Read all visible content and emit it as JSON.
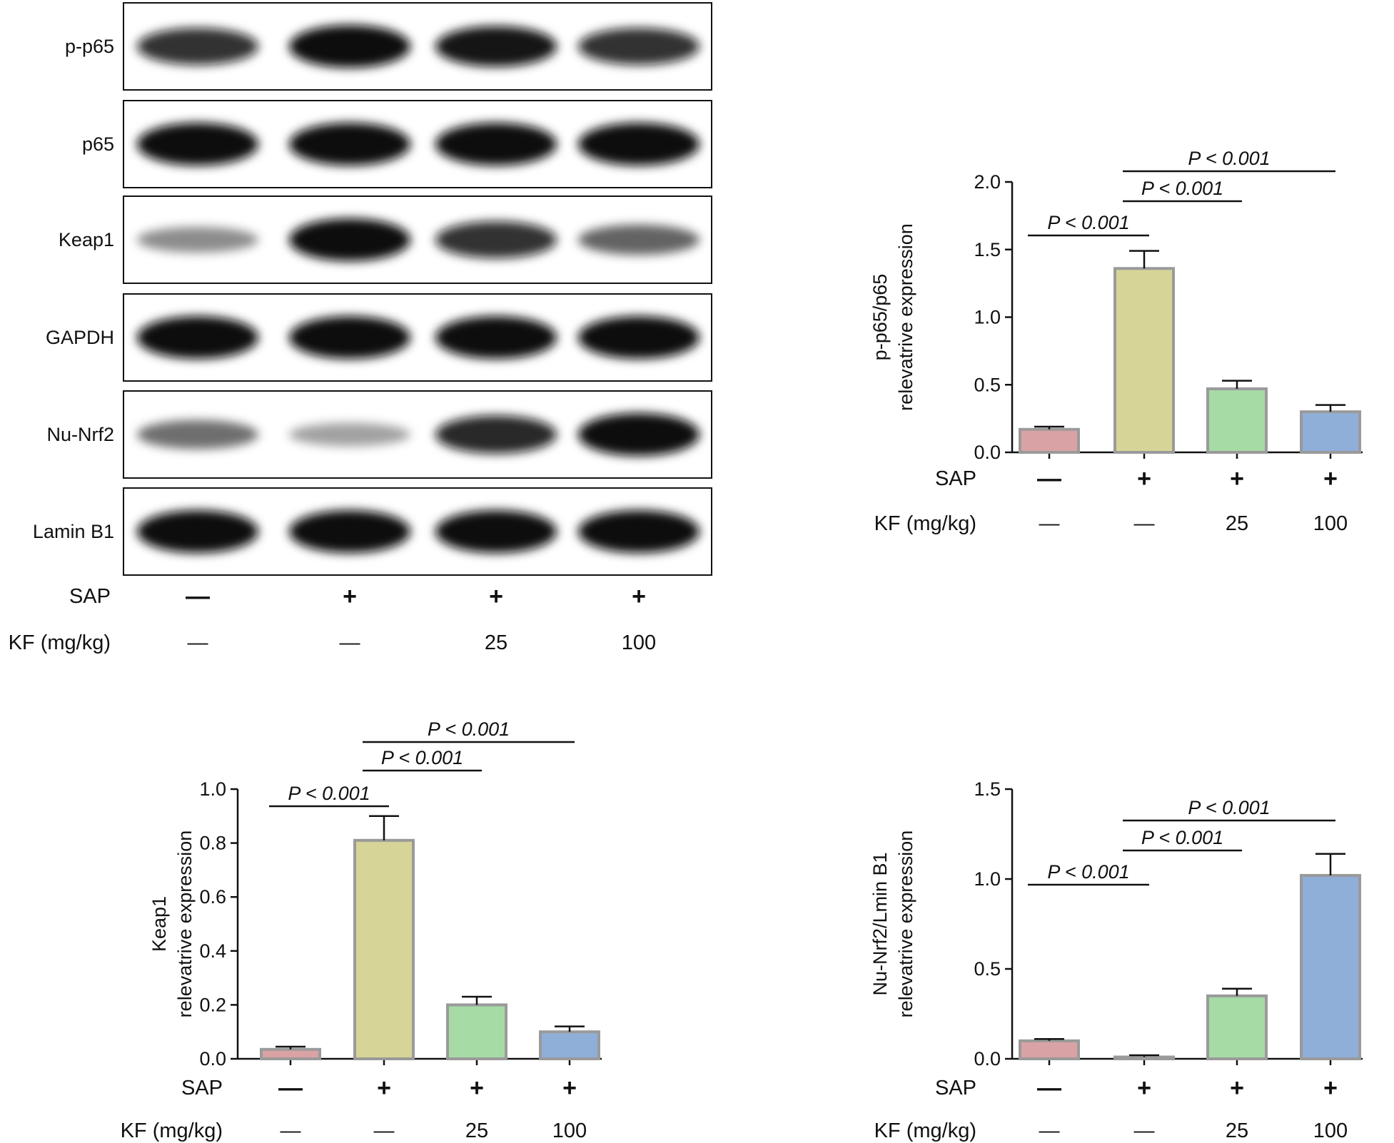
{
  "blot": {
    "rows": [
      {
        "label": "p-p65",
        "intensity": [
          0.75,
          1.0,
          0.9,
          0.75
        ]
      },
      {
        "label": "p65",
        "intensity": [
          1.0,
          1.0,
          1.0,
          1.0
        ]
      },
      {
        "label": "Keap1",
        "intensity": [
          0.25,
          1.0,
          0.75,
          0.45
        ]
      },
      {
        "label": "GAPDH",
        "intensity": [
          1.0,
          1.0,
          1.0,
          1.0
        ]
      },
      {
        "label": "Nu-Nrf2",
        "intensity": [
          0.4,
          0.15,
          0.8,
          1.0
        ]
      },
      {
        "label": "Lamin B1",
        "intensity": [
          1.0,
          1.0,
          1.0,
          1.0
        ]
      }
    ],
    "conditions": {
      "sap_label": "SAP",
      "kf_label": "KF (mg/kg)",
      "sap": [
        "—",
        "+",
        "+",
        "+"
      ],
      "kf": [
        "—",
        "—",
        "25",
        "100"
      ]
    }
  },
  "chart_data": [
    {
      "type": "bar",
      "ylabel": [
        "p-p65/p65",
        "relevatrive expression"
      ],
      "ylim": [
        0,
        2.0
      ],
      "yticks": [
        "0.0",
        "0.5",
        "1.0",
        "1.5",
        "2.0"
      ],
      "values": [
        0.17,
        1.36,
        0.47,
        0.3
      ],
      "errors": [
        0.02,
        0.13,
        0.06,
        0.05
      ],
      "colors": [
        "#d9a3a5",
        "#d6d597",
        "#a6dba6",
        "#8faed8"
      ],
      "sap_label": "SAP",
      "kf_label": "KF (mg/kg)",
      "sap": [
        "—",
        "+",
        "+",
        "+"
      ],
      "kf": [
        "—",
        "—",
        "25",
        "100"
      ],
      "annotations": [
        {
          "text": "P < 0.001",
          "from": 0,
          "to": 1,
          "level": 1
        },
        {
          "text": "P < 0.001",
          "from": 1,
          "to": 2,
          "level": 2
        },
        {
          "text": "P < 0.001",
          "from": 1,
          "to": 3,
          "level": 3
        }
      ]
    },
    {
      "type": "bar",
      "ylabel": [
        "Keap1",
        "relevatrive expression"
      ],
      "ylim": [
        0,
        1.0
      ],
      "yticks": [
        "0.0",
        "0.2",
        "0.4",
        "0.6",
        "0.8",
        "1.0"
      ],
      "values": [
        0.035,
        0.81,
        0.2,
        0.1
      ],
      "errors": [
        0.01,
        0.09,
        0.03,
        0.02
      ],
      "colors": [
        "#d9a3a5",
        "#d6d597",
        "#a6dba6",
        "#8faed8"
      ],
      "sap_label": "SAP",
      "kf_label": "KF (mg/kg)",
      "sap": [
        "—",
        "+",
        "+",
        "+"
      ],
      "kf": [
        "—",
        "—",
        "25",
        "100"
      ],
      "annotations": [
        {
          "text": "P < 0.001",
          "from": 0,
          "to": 1,
          "level": 1
        },
        {
          "text": "P < 0.001",
          "from": 1,
          "to": 2,
          "level": 2
        },
        {
          "text": "P < 0.001",
          "from": 1,
          "to": 3,
          "level": 3
        }
      ]
    },
    {
      "type": "bar",
      "ylabel": [
        "Nu-Nrf2/Lmin B1",
        "relevatrive expression"
      ],
      "ylim": [
        0,
        1.5
      ],
      "yticks": [
        "0.0",
        "0.5",
        "1.0",
        "1.5"
      ],
      "values": [
        0.1,
        0.01,
        0.35,
        1.02
      ],
      "errors": [
        0.01,
        0.01,
        0.04,
        0.12
      ],
      "colors": [
        "#d9a3a5",
        "#d6d597",
        "#a6dba6",
        "#8faed8"
      ],
      "sap_label": "SAP",
      "kf_label": "KF (mg/kg)",
      "sap": [
        "—",
        "+",
        "+",
        "+"
      ],
      "kf": [
        "—",
        "—",
        "25",
        "100"
      ],
      "annotations": [
        {
          "text": "P < 0.001",
          "from": 0,
          "to": 1,
          "level": 1
        },
        {
          "text": "P < 0.001",
          "from": 1,
          "to": 2,
          "level": 2
        },
        {
          "text": "P < 0.001",
          "from": 1,
          "to": 3,
          "level": 3
        }
      ]
    }
  ]
}
